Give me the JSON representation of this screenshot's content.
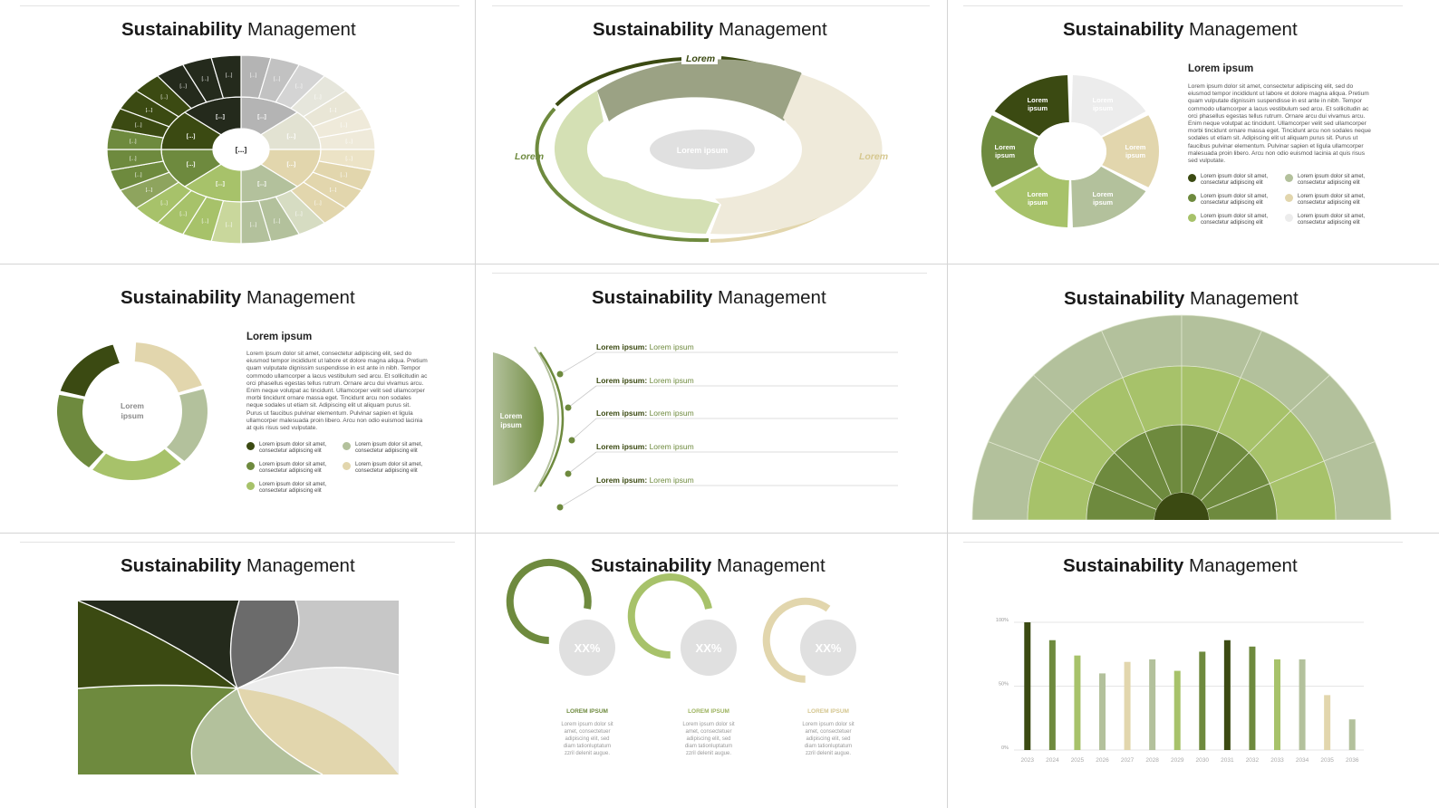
{
  "slide_title_bold": "Sustainability",
  "slide_title_regular": "Management",
  "colors": {
    "green_dark": "#3b4a12",
    "green_mid": "#6e8a3e",
    "green_light": "#a7c26a",
    "sage": "#b3c19c",
    "beige": "#e2d6ad",
    "cream": "#efeada",
    "grey_light": "#ececec",
    "grey_mid": "#b4b4b4",
    "grey_dark": "#6b6b6b",
    "black_green": "#242a1c"
  },
  "slide1": {
    "center_label": "[...]",
    "segment_label": "[...]"
  },
  "slide2": {
    "top_label": "Lorem",
    "left_label": "Lorem",
    "right_label": "Lorem",
    "center_label": "Lorem ipsum"
  },
  "slide3": {
    "heading": "Lorem ipsum",
    "segment_label": "Lorem ipsum",
    "body": "Lorem ipsum dolor sit amet, consectetur adipiscing elit, sed do eiusmod tempor incididunt ut labore et dolore magna aliqua. Pretium quam vulputate dignissim suspendisse in est ante in nibh. Tempor commodo ullamcorper a lacus vestibulum sed arcu. Et sollicitudin ac orci phasellus egestas tellus rutrum. Ornare arcu dui vivamus arcu. Enim neque volutpat ac tincidunt. Ullamcorper velit sed ullamcorper morbi tincidunt ornare massa eget. Tincidunt arcu non sodales neque sodales ut etiam sit. Adipiscing elit ut aliquam purus sit. Purus ut faucibus pulvinar elementum. Pulvinar sapien et ligula ullamcorper malesuada proin libero. Arcu non odio euismod lacinia at quis risus sed vulputate.",
    "legend": [
      {
        "num": "1",
        "text": "Lorem ipsum dolor sit amet, consectetur adipiscing elit"
      },
      {
        "num": "2",
        "text": "Lorem ipsum dolor sit amet, consectetur adipiscing elit"
      },
      {
        "num": "3",
        "text": "Lorem ipsum dolor sit amet, consectetur adipiscing elit"
      },
      {
        "num": "4",
        "text": "Lorem ipsum dolor sit amet, consectetur adipiscing elit"
      },
      {
        "num": "5",
        "text": "Lorem ipsum dolor sit amet, consectetur adipiscing elit"
      },
      {
        "num": "6",
        "text": "Lorem ipsum dolor sit amet, consectetur adipiscing elit"
      }
    ]
  },
  "slide4": {
    "heading": "Lorem ipsum",
    "center_label_line1": "Lorem",
    "center_label_line2": "ipsum",
    "body": "Lorem ipsum dolor sit amet, consectetur adipiscing elit, sed do eiusmod tempor incididunt ut labore et dolore magna aliqua. Pretium quam vulputate dignissim suspendisse in est ante in nibh. Tempor commodo ullamcorper a lacus vestibulum sed arcu. Et sollicitudin ac orci phasellus egestas tellus rutrum. Ornare arcu dui vivamus arcu. Enim neque volutpat ac tincidunt. Ullamcorper velit sed ullamcorper morbi tincidunt ornare massa eget. Tincidunt arcu non sodales neque sodales ut etiam sit. Adipiscing elit ut aliquam purus sit. Purus ut faucibus pulvinar elementum. Pulvinar sapien et ligula ullamcorper malesuada proin libero. Arcu non odio euismod lacinia at quis risus sed vulputate.",
    "legend": [
      {
        "num": "1",
        "text": "Lorem ipsum dolor sit amet, consectetur adipiscing elit"
      },
      {
        "num": "2",
        "text": "Lorem ipsum dolor sit amet, consectetur adipiscing elit"
      },
      {
        "num": "3",
        "text": "Lorem ipsum dolor sit amet, consectetur adipiscing elit"
      },
      {
        "num": "4",
        "text": "Lorem ipsum dolor sit amet, consectetur adipiscing elit"
      },
      {
        "num": "5",
        "text": "Lorem ipsum dolor sit amet, consectetur adipiscing elit"
      }
    ]
  },
  "slide5": {
    "center_label_line1": "Lorem",
    "center_label_line2": "ipsum",
    "rows": [
      {
        "bold": "Lorem ipsum:",
        "text": "Lorem ipsum"
      },
      {
        "bold": "Lorem ipsum:",
        "text": "Lorem ipsum"
      },
      {
        "bold": "Lorem ipsum:",
        "text": "Lorem ipsum"
      },
      {
        "bold": "Lorem ipsum:",
        "text": "Lorem ipsum"
      },
      {
        "bold": "Lorem ipsum:",
        "text": "Lorem ipsum"
      }
    ]
  },
  "slide8": {
    "items": [
      {
        "value": "XX%",
        "fill": 0.78,
        "label": "LOREM IPSUM",
        "text": "Lorem ipsum dolor sit amet, consectetuer adipiscing elit, sed diam tationluptatum zzril delenit augue."
      },
      {
        "value": "XX%",
        "fill": 0.72,
        "label": "LOREM IPSUM",
        "text": "Lorem ipsum dolor sit amet, consectetuer adipiscing elit, sed diam tationluptatum zzril delenit augue."
      },
      {
        "value": "XX%",
        "fill": 0.6,
        "label": "LOREM IPSUM",
        "text": "Lorem ipsum dolor sit amet, consectetuer adipiscing elit, sed diam tationluptatum zzril delenit augue."
      }
    ]
  },
  "chart_data": {
    "type": "bar",
    "categories": [
      "2023",
      "2024",
      "2025",
      "2026",
      "2027",
      "2028",
      "2029",
      "2030",
      "2031",
      "2032",
      "2033",
      "2034",
      "2035",
      "2036"
    ],
    "values": [
      100,
      86,
      74,
      60,
      69,
      71,
      62,
      77,
      86,
      81,
      71,
      71,
      43,
      24
    ],
    "y_ticks": [
      "100%",
      "50%",
      "0%"
    ],
    "ylim": [
      0,
      100
    ],
    "grid": true
  }
}
